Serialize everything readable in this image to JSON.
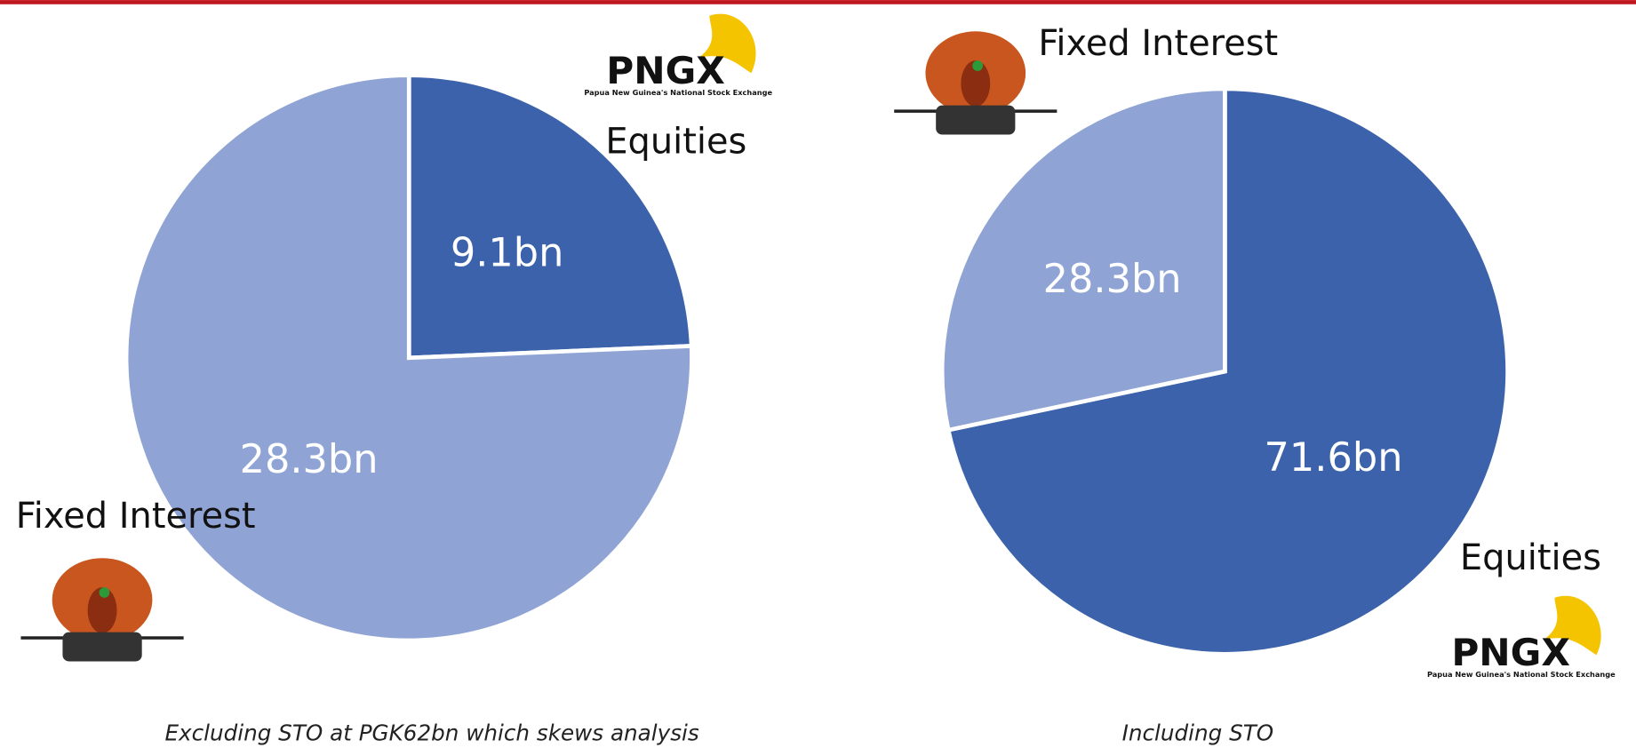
{
  "chart_data": [
    {
      "type": "pie",
      "categories": [
        "Equities",
        "Fixed Interest"
      ],
      "values": [
        9.1,
        28.3
      ],
      "value_labels": [
        "9.1bn",
        "28.3bn"
      ],
      "colors": [
        "#3b62aa",
        "#8fa4d4"
      ],
      "subtitle": "Excluding STO at PGK62bn which skews analysis"
    },
    {
      "type": "pie",
      "categories": [
        "Equities",
        "Fixed Interest"
      ],
      "values": [
        71.6,
        28.3
      ],
      "value_labels": [
        "71.6bn",
        "28.3bn"
      ],
      "colors": [
        "#3b62aa",
        "#8fa4d4"
      ],
      "subtitle": "Including STO"
    }
  ],
  "logo": {
    "name": "PNGX",
    "tagline": "Papua New Guinea's National Stock Exchange"
  }
}
